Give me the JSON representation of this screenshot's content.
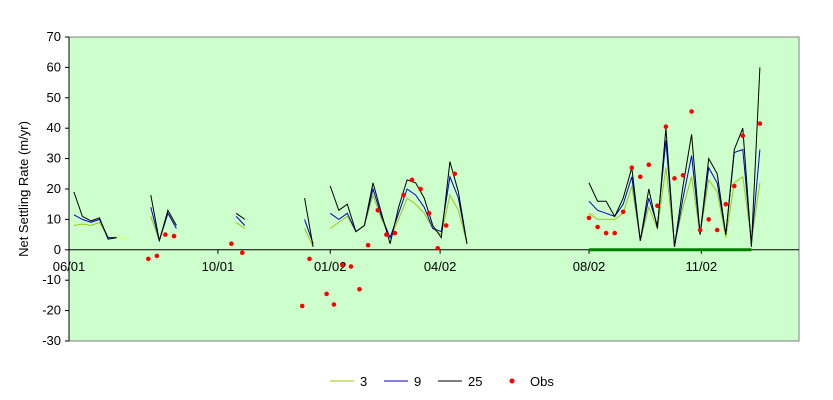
{
  "chart_data": {
    "type": "line",
    "title": "",
    "xlabel": "",
    "ylabel": "Net Settling Rate (m/yr)",
    "ylim": [
      -30,
      70
    ],
    "yticks": [
      -30,
      -20,
      -10,
      0,
      10,
      20,
      30,
      40,
      50,
      60,
      70
    ],
    "xlim": [
      "2001-06-01",
      "2003-01-20"
    ],
    "xticks": [
      {
        "label": "06/01",
        "date": "2001-06-01"
      },
      {
        "label": "10/01",
        "date": "2001-10-01"
      },
      {
        "label": "01/02",
        "date": "2002-01-01"
      },
      {
        "label": "04/02",
        "date": "2002-04-01"
      },
      {
        "label": "08/02",
        "date": "2002-08-01"
      },
      {
        "label": "11/02",
        "date": "2002-11-01"
      }
    ],
    "grid": false,
    "legend_position": "bottom",
    "plot_background": "#ccffcc",
    "series": [
      {
        "name": "3",
        "kind": "line",
        "color": "#99cc00",
        "segments": [
          [
            [
              "2001-06-05",
              8
            ],
            [
              "2001-06-12",
              8.5
            ],
            [
              "2001-06-19",
              8
            ],
            [
              "2001-06-26",
              9
            ],
            [
              "2001-07-03",
              4
            ],
            [
              "2001-07-10",
              4
            ]
          ],
          [
            [
              "2001-08-07",
              11
            ],
            [
              "2001-08-14",
              3
            ],
            [
              "2001-08-21",
              12
            ],
            [
              "2001-08-28",
              8
            ]
          ],
          [
            [
              "2001-10-16",
              9
            ],
            [
              "2001-10-23",
              7
            ]
          ],
          [
            [
              "2001-12-11",
              7
            ],
            [
              "2001-12-18",
              1
            ]
          ],
          [
            [
              "2002-01-01",
              7
            ],
            [
              "2002-01-08",
              9
            ],
            [
              "2002-01-15",
              11
            ],
            [
              "2002-01-22",
              6
            ],
            [
              "2002-01-29",
              8
            ],
            [
              "2002-02-05",
              18
            ],
            [
              "2002-02-12",
              10
            ],
            [
              "2002-02-19",
              4
            ],
            [
              "2002-02-26",
              10
            ],
            [
              "2002-03-05",
              17
            ],
            [
              "2002-03-12",
              15
            ],
            [
              "2002-03-19",
              12
            ],
            [
              "2002-03-26",
              7
            ],
            [
              "2002-04-02",
              5
            ],
            [
              "2002-04-09",
              18
            ],
            [
              "2002-04-16",
              13
            ],
            [
              "2002-04-23",
              2
            ]
          ],
          [
            [
              "2002-08-01",
              12
            ],
            [
              "2002-08-08",
              10
            ],
            [
              "2002-08-15",
              10
            ],
            [
              "2002-08-22",
              10
            ],
            [
              "2002-08-29",
              12
            ],
            [
              "2002-09-05",
              21
            ],
            [
              "2002-09-12",
              3
            ],
            [
              "2002-09-19",
              14
            ],
            [
              "2002-09-26",
              7
            ],
            [
              "2002-10-03",
              27
            ],
            [
              "2002-10-10",
              2
            ],
            [
              "2002-10-17",
              14
            ],
            [
              "2002-10-24",
              24
            ],
            [
              "2002-10-31",
              5
            ],
            [
              "2002-11-07",
              23
            ],
            [
              "2002-11-14",
              19
            ],
            [
              "2002-11-21",
              4
            ],
            [
              "2002-11-28",
              22
            ],
            [
              "2002-12-05",
              24
            ],
            [
              "2002-12-12",
              3
            ],
            [
              "2002-12-19",
              22
            ]
          ]
        ]
      },
      {
        "name": "9",
        "kind": "line",
        "color": "#0000cc",
        "segments": [
          [
            [
              "2001-06-05",
              11.5
            ],
            [
              "2001-06-12",
              10
            ],
            [
              "2001-06-19",
              9
            ],
            [
              "2001-06-26",
              10
            ],
            [
              "2001-07-03",
              4
            ],
            [
              "2001-07-10",
              4
            ]
          ],
          [
            [
              "2001-08-07",
              14
            ],
            [
              "2001-08-14",
              3
            ],
            [
              "2001-08-21",
              12
            ],
            [
              "2001-08-28",
              7
            ]
          ],
          [
            [
              "2001-10-16",
              11
            ],
            [
              "2001-10-23",
              8
            ]
          ],
          [
            [
              "2001-12-11",
              10
            ],
            [
              "2001-12-18",
              2
            ]
          ],
          [
            [
              "2002-01-01",
              12
            ],
            [
              "2002-01-08",
              10
            ],
            [
              "2002-01-15",
              12
            ],
            [
              "2002-01-22",
              6
            ],
            [
              "2002-01-29",
              8
            ],
            [
              "2002-02-05",
              20
            ],
            [
              "2002-02-12",
              11
            ],
            [
              "2002-02-19",
              4
            ],
            [
              "2002-02-26",
              12
            ],
            [
              "2002-03-05",
              20
            ],
            [
              "2002-03-12",
              18
            ],
            [
              "2002-03-19",
              14
            ],
            [
              "2002-03-26",
              7
            ],
            [
              "2002-04-02",
              6
            ],
            [
              "2002-04-09",
              24
            ],
            [
              "2002-04-16",
              17
            ],
            [
              "2002-04-23",
              2
            ]
          ],
          [
            [
              "2002-08-01",
              16
            ],
            [
              "2002-08-08",
              13
            ],
            [
              "2002-08-15",
              12
            ],
            [
              "2002-08-22",
              11
            ],
            [
              "2002-08-29",
              15
            ],
            [
              "2002-09-05",
              24
            ],
            [
              "2002-09-12",
              3
            ],
            [
              "2002-09-19",
              17
            ],
            [
              "2002-09-26",
              8
            ],
            [
              "2002-10-03",
              36
            ],
            [
              "2002-10-10",
              1
            ],
            [
              "2002-10-17",
              17
            ],
            [
              "2002-10-24",
              31
            ],
            [
              "2002-10-31",
              5
            ],
            [
              "2002-11-07",
              27
            ],
            [
              "2002-11-14",
              22
            ],
            [
              "2002-11-21",
              5
            ],
            [
              "2002-11-28",
              32
            ],
            [
              "2002-12-05",
              33
            ],
            [
              "2002-12-12",
              2
            ],
            [
              "2002-12-19",
              33
            ]
          ]
        ]
      },
      {
        "name": "25",
        "kind": "line",
        "color": "#000000",
        "segments": [
          [
            [
              "2001-06-05",
              19
            ],
            [
              "2001-06-12",
              11
            ],
            [
              "2001-06-19",
              9.5
            ],
            [
              "2001-06-26",
              10.5
            ],
            [
              "2001-07-03",
              3.5
            ],
            [
              "2001-07-10",
              4
            ]
          ],
          [
            [
              "2001-08-07",
              18
            ],
            [
              "2001-08-14",
              3
            ],
            [
              "2001-08-21",
              13
            ],
            [
              "2001-08-28",
              8
            ]
          ],
          [
            [
              "2001-10-16",
              12
            ],
            [
              "2001-10-23",
              10
            ]
          ],
          [
            [
              "2001-12-11",
              17
            ],
            [
              "2001-12-18",
              1
            ]
          ],
          [
            [
              "2002-01-01",
              21
            ],
            [
              "2002-01-08",
              13
            ],
            [
              "2002-01-15",
              15
            ],
            [
              "2002-01-22",
              6
            ],
            [
              "2002-01-29",
              8
            ],
            [
              "2002-02-05",
              22
            ],
            [
              "2002-02-12",
              12
            ],
            [
              "2002-02-19",
              2
            ],
            [
              "2002-02-26",
              14
            ],
            [
              "2002-03-05",
              23
            ],
            [
              "2002-03-12",
              22
            ],
            [
              "2002-03-19",
              17
            ],
            [
              "2002-03-26",
              8
            ],
            [
              "2002-04-02",
              4
            ],
            [
              "2002-04-09",
              29
            ],
            [
              "2002-04-16",
              19
            ],
            [
              "2002-04-23",
              2
            ]
          ],
          [
            [
              "2002-08-01",
              22
            ],
            [
              "2002-08-08",
              16
            ],
            [
              "2002-08-15",
              16
            ],
            [
              "2002-08-22",
              11
            ],
            [
              "2002-08-29",
              17
            ],
            [
              "2002-09-05",
              27
            ],
            [
              "2002-09-12",
              3
            ],
            [
              "2002-09-19",
              20
            ],
            [
              "2002-09-26",
              7
            ],
            [
              "2002-10-03",
              40
            ],
            [
              "2002-10-10",
              1
            ],
            [
              "2002-10-17",
              21
            ],
            [
              "2002-10-24",
              38
            ],
            [
              "2002-10-31",
              5
            ],
            [
              "2002-11-07",
              30
            ],
            [
              "2002-11-14",
              25
            ],
            [
              "2002-11-21",
              5
            ],
            [
              "2002-11-28",
              33
            ],
            [
              "2002-12-05",
              40
            ],
            [
              "2002-12-12",
              1
            ],
            [
              "2002-12-19",
              60
            ]
          ]
        ]
      },
      {
        "name": "Obs",
        "kind": "scatter",
        "color": "#ff0000",
        "points": [
          [
            "2001-08-05",
            -3
          ],
          [
            "2001-08-12",
            -2
          ],
          [
            "2001-08-19",
            5
          ],
          [
            "2001-08-26",
            4.5
          ],
          [
            "2001-10-12",
            2
          ],
          [
            "2001-10-21",
            -1
          ],
          [
            "2001-12-09",
            -18.5
          ],
          [
            "2001-12-15",
            -3
          ],
          [
            "2001-12-29",
            -14.5
          ],
          [
            "2002-01-04",
            -18
          ],
          [
            "2002-01-11",
            -5
          ],
          [
            "2002-01-18",
            -5.5
          ],
          [
            "2002-01-25",
            -13
          ],
          [
            "2002-02-01",
            1.5
          ],
          [
            "2002-02-09",
            13
          ],
          [
            "2002-02-16",
            5
          ],
          [
            "2002-02-23",
            5.5
          ],
          [
            "2002-03-02",
            18
          ],
          [
            "2002-03-09",
            23
          ],
          [
            "2002-03-16",
            20
          ],
          [
            "2002-03-23",
            12
          ],
          [
            "2002-03-30",
            0.5
          ],
          [
            "2002-04-06",
            8
          ],
          [
            "2002-04-13",
            25
          ],
          [
            "2002-08-01",
            10.5
          ],
          [
            "2002-08-08",
            7.5
          ],
          [
            "2002-08-15",
            5.5
          ],
          [
            "2002-08-22",
            5.5
          ],
          [
            "2002-08-29",
            12.5
          ],
          [
            "2002-09-05",
            27
          ],
          [
            "2002-09-12",
            24
          ],
          [
            "2002-09-19",
            28
          ],
          [
            "2002-09-26",
            14.5
          ],
          [
            "2002-10-03",
            40.5
          ],
          [
            "2002-10-10",
            23.5
          ],
          [
            "2002-10-17",
            24.5
          ],
          [
            "2002-10-24",
            45.5
          ],
          [
            "2002-10-31",
            6.5
          ],
          [
            "2002-11-07",
            10
          ],
          [
            "2002-11-14",
            6.5
          ],
          [
            "2002-11-21",
            15
          ],
          [
            "2002-11-28",
            21
          ],
          [
            "2002-12-05",
            37.5
          ],
          [
            "2002-12-19",
            41.5
          ]
        ]
      }
    ],
    "baseline_bar": {
      "from": "2002-08-01",
      "to": "2002-12-12",
      "value": 0,
      "color": "#008000"
    }
  }
}
